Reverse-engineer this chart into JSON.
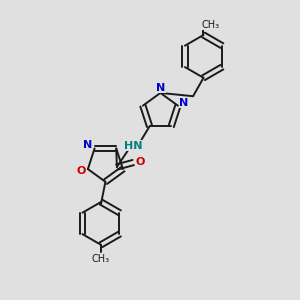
{
  "background_color": "#e0e0e0",
  "bond_color": "#1a1a1a",
  "nitrogen_color": "#0000cc",
  "oxygen_color": "#cc0000",
  "nh_color": "#008080",
  "figsize": [
    3.0,
    3.0
  ],
  "dpi": 100,
  "xlim": [
    0,
    10
  ],
  "ylim": [
    0,
    10
  ]
}
